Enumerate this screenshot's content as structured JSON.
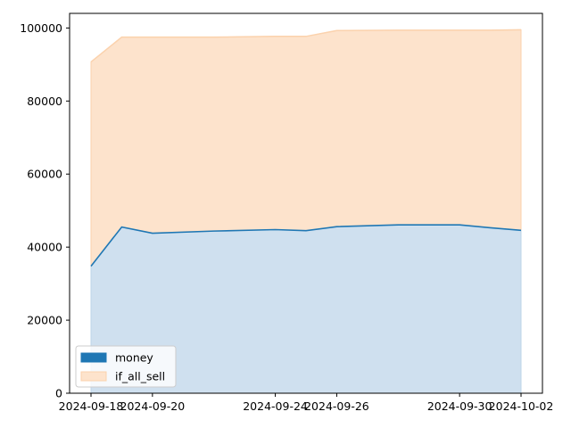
{
  "chart_data": {
    "type": "area",
    "x": [
      "2024-09-18",
      "2024-09-19",
      "2024-09-20",
      "2024-09-22",
      "2024-09-24",
      "2024-09-25",
      "2024-09-26",
      "2024-09-28",
      "2024-09-30",
      "2024-10-01",
      "2024-10-02"
    ],
    "series": [
      {
        "name": "money",
        "values": [
          34800,
          45500,
          43800,
          44400,
          44800,
          44500,
          45600,
          46100,
          46100,
          45300,
          44600
        ]
      },
      {
        "name": "if_all_sell",
        "values": [
          90700,
          97500,
          97500,
          97500,
          97700,
          97700,
          99300,
          99400,
          99400,
          99400,
          99500
        ]
      }
    ],
    "xticks": [
      "2024-09-18",
      "2024-09-20",
      "2024-09-24",
      "2024-09-26",
      "2024-09-30",
      "2024-10-02"
    ],
    "yticks": [
      0,
      20000,
      40000,
      60000,
      80000,
      100000
    ],
    "ylim": [
      0,
      104000
    ],
    "grid": false,
    "legend_position": "lower-left",
    "colors": {
      "money_fill": "#cfe0ef",
      "money_line": "#1f77b4",
      "money_legend": "#1f77b4",
      "if_all_sell_fill": "#fde3cc",
      "if_all_sell_edge": "#fbd2ad"
    }
  }
}
